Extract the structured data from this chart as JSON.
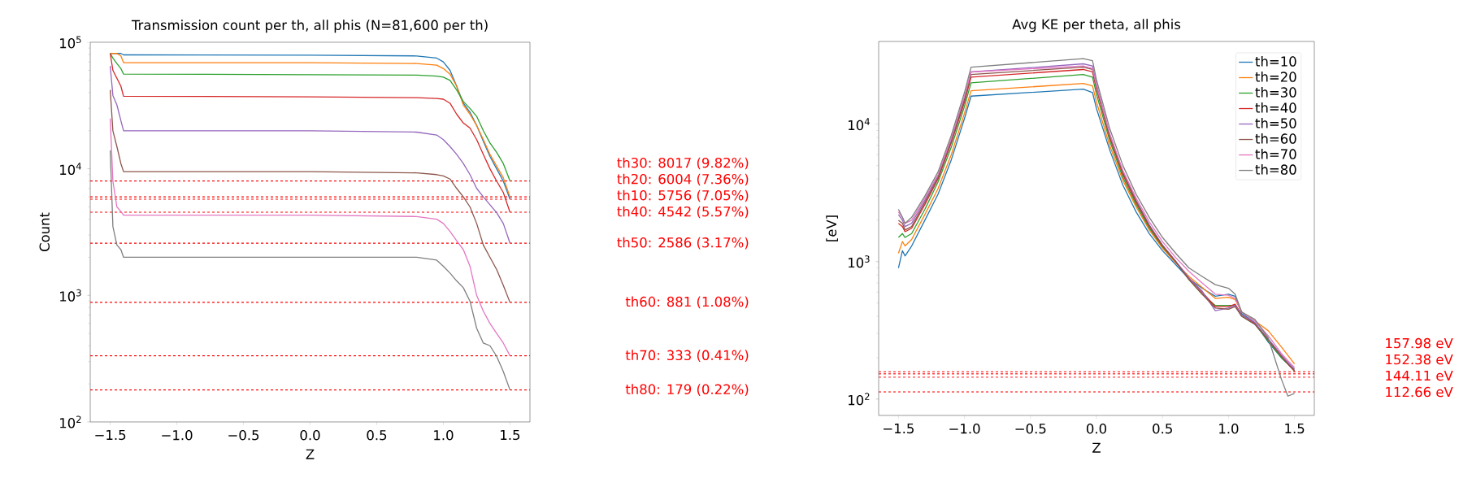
{
  "chart_data": [
    {
      "type": "line",
      "title": "Transmission count per th, all phis (N=81,600 per th)",
      "xlabel": "Z",
      "ylabel": "Count",
      "log": "y",
      "xlim": [
        -1.65,
        1.65
      ],
      "ylim": [
        100,
        100000
      ],
      "xticks": [
        {
          "value": -1.5,
          "label": "−1.5"
        },
        {
          "value": -1.0,
          "label": "−1.0"
        },
        {
          "value": -0.5,
          "label": "−0.5"
        },
        {
          "value": 0,
          "label": "0.0"
        },
        {
          "value": 0.5,
          "label": "0.5"
        },
        {
          "value": 1.0,
          "label": "1.0"
        },
        {
          "value": 1.5,
          "label": "1.5"
        }
      ],
      "yticks": [
        {
          "value": 100,
          "label": "10$^{2}$"
        },
        {
          "value": 1000,
          "label": "10$^{3}$"
        },
        {
          "value": 10000,
          "label": "10$^{4}$"
        },
        {
          "value": 100000,
          "label": "10$^{5}$"
        }
      ],
      "x": [
        -1.5,
        -1.48,
        -1.45,
        -1.42,
        -1.4,
        0.0,
        0.8,
        0.95,
        1.0,
        1.05,
        1.1,
        1.15,
        1.2,
        1.25,
        1.3,
        1.35,
        1.4,
        1.45,
        1.5
      ],
      "series": [
        {
          "color": "#1f77b4",
          "values": [
            81600,
            81600,
            81600,
            81600,
            79500,
            79000,
            78000,
            75000,
            70000,
            60000,
            45000,
            33000,
            28000,
            22000,
            16500,
            12500,
            10000,
            8000,
            5756
          ]
        },
        {
          "color": "#ff7f0e",
          "values": [
            81600,
            81600,
            81600,
            78000,
            69000,
            69000,
            68000,
            66000,
            62000,
            56000,
            45000,
            32000,
            27000,
            22000,
            17000,
            13000,
            10500,
            8500,
            6004
          ]
        },
        {
          "color": "#2ca02c",
          "values": [
            81600,
            75000,
            68000,
            62000,
            56000,
            55500,
            55000,
            54000,
            53000,
            50000,
            42000,
            34000,
            30000,
            26000,
            20000,
            16000,
            13500,
            11000,
            8017
          ]
        },
        {
          "color": "#d62728",
          "values": [
            81600,
            60000,
            52000,
            45000,
            37500,
            37000,
            36500,
            36000,
            35500,
            33000,
            27000,
            23000,
            21000,
            17000,
            13000,
            10000,
            8000,
            6500,
            4542
          ]
        },
        {
          "color": "#9467bd",
          "values": [
            65000,
            38000,
            32000,
            24000,
            20000,
            20000,
            19500,
            18500,
            17000,
            15000,
            13000,
            11000,
            9000,
            7000,
            6000,
            5200,
            4500,
            3700,
            2586
          ]
        },
        {
          "color": "#8c564b",
          "values": [
            42000,
            20000,
            15000,
            11000,
            9500,
            9500,
            9300,
            9000,
            8800,
            8300,
            7000,
            6000,
            5000,
            3700,
            2500,
            2000,
            1600,
            1200,
            881
          ]
        },
        {
          "color": "#e377c2",
          "values": [
            25000,
            8000,
            5000,
            4600,
            4300,
            4300,
            4200,
            4000,
            3700,
            3200,
            2700,
            2300,
            1700,
            1000,
            750,
            600,
            500,
            420,
            333
          ]
        },
        {
          "color": "#7f7f7f",
          "values": [
            14000,
            3500,
            2500,
            2300,
            2000,
            2000,
            2000,
            1900,
            1700,
            1500,
            1300,
            1150,
            900,
            550,
            420,
            400,
            330,
            250,
            179
          ]
        }
      ],
      "ref_lines": [
        {
          "axis": "y",
          "value": 8017,
          "label": "th30: 8017 (9.82%)",
          "color": "#ff0000",
          "line_style": "dashed"
        },
        {
          "axis": "y",
          "value": 6004,
          "label": "th20: 6004 (7.36%)",
          "color": "#ff0000",
          "line_style": "dashed"
        },
        {
          "axis": "y",
          "value": 5756,
          "label": "th10: 5756 (7.05%)",
          "color": "#ff0000",
          "line_style": "dashed"
        },
        {
          "axis": "y",
          "value": 4542,
          "label": "th40: 4542 (5.57%)",
          "color": "#ff0000",
          "line_style": "dashed"
        },
        {
          "axis": "y",
          "value": 2586,
          "label": "th50: 2586 (3.17%)",
          "color": "#ff0000",
          "line_style": "dashed"
        },
        {
          "axis": "y",
          "value": 881,
          "label": "th60: 881 (1.08%)",
          "color": "#ff0000",
          "line_style": "dashed"
        },
        {
          "axis": "y",
          "value": 333,
          "label": "th70: 333 (0.41%)",
          "color": "#ff0000",
          "line_style": "dashed"
        },
        {
          "axis": "y",
          "value": 179,
          "label": "th80: 179 (0.22%)",
          "color": "#ff0000",
          "line_style": "dashed"
        }
      ]
    },
    {
      "type": "line",
      "title": "Avg KE per theta, all phis",
      "xlabel": "Z",
      "ylabel": "[eV]",
      "log": "y",
      "legend": "top right",
      "xlim": [
        -1.65,
        1.65
      ],
      "ylim": [
        76,
        40000
      ],
      "xticks": [
        {
          "value": -1.5,
          "label": "−1.5"
        },
        {
          "value": -1.0,
          "label": "−1.0"
        },
        {
          "value": -0.5,
          "label": "−0.5"
        },
        {
          "value": 0,
          "label": "0.0"
        },
        {
          "value": 0.5,
          "label": "0.5"
        },
        {
          "value": 1.0,
          "label": "1.0"
        },
        {
          "value": 1.5,
          "label": "1.5"
        }
      ],
      "yticks": [
        {
          "value": 100,
          "label": "10$^{2}$"
        },
        {
          "value": 1000,
          "label": "10$^{3}$"
        },
        {
          "value": 10000,
          "label": "10$^{4}$"
        }
      ],
      "x": [
        -1.5,
        -1.47,
        -1.45,
        -1.4,
        -1.3,
        -1.2,
        -1.1,
        -1.0,
        -0.95,
        -0.1,
        -0.03,
        0.0,
        0.1,
        0.2,
        0.3,
        0.4,
        0.5,
        0.6,
        0.7,
        0.8,
        0.9,
        1.0,
        1.05,
        1.1,
        1.2,
        1.3,
        1.4,
        1.45,
        1.5
      ],
      "series": [
        {
          "name": "th=10",
          "color": "#1f77b4",
          "values": [
            900,
            1200,
            1100,
            1300,
            2000,
            3100,
            5500,
            11000,
            16000,
            18000,
            17000,
            13000,
            6500,
            3600,
            2300,
            1600,
            1200,
            950,
            750,
            640,
            560,
            580,
            560,
            420,
            360,
            260,
            200,
            180,
            160
          ]
        },
        {
          "name": "th=20",
          "color": "#ff7f0e",
          "values": [
            1150,
            1400,
            1300,
            1450,
            2200,
            3400,
            6000,
            12000,
            17500,
            19800,
            19000,
            14500,
            7000,
            3900,
            2500,
            1700,
            1250,
            980,
            780,
            650,
            540,
            550,
            530,
            430,
            370,
            315,
            240,
            208,
            180
          ]
        },
        {
          "name": "th=30",
          "color": "#2ca02c",
          "values": [
            1500,
            1600,
            1500,
            1600,
            2400,
            3800,
            6800,
            13500,
            20000,
            23000,
            22000,
            16500,
            7600,
            4100,
            2600,
            1750,
            1280,
            1000,
            740,
            580,
            480,
            480,
            480,
            400,
            350,
            265,
            200,
            180,
            160
          ]
        },
        {
          "name": "th=40",
          "color": "#d62728",
          "values": [
            1900,
            1800,
            1650,
            1750,
            2600,
            4000,
            7300,
            14500,
            22000,
            25000,
            24000,
            18000,
            8000,
            4300,
            2700,
            1800,
            1300,
            1000,
            760,
            600,
            470,
            470,
            490,
            410,
            355,
            270,
            205,
            180,
            160
          ]
        },
        {
          "name": "th=50",
          "color": "#9467bd",
          "values": [
            2200,
            2000,
            1800,
            1900,
            2800,
            4200,
            7700,
            15500,
            24000,
            27500,
            26500,
            19500,
            8500,
            4500,
            2800,
            1850,
            1320,
            1010,
            760,
            610,
            440,
            460,
            480,
            410,
            360,
            275,
            210,
            185,
            165
          ]
        },
        {
          "name": "th=60",
          "color": "#8c564b",
          "values": [
            2000,
            1900,
            1700,
            1800,
            2700,
            4100,
            7500,
            15000,
            23000,
            26000,
            25000,
            18500,
            8200,
            4400,
            2750,
            1820,
            1310,
            1000,
            740,
            580,
            460,
            450,
            470,
            400,
            350,
            270,
            205,
            180,
            162
          ]
        },
        {
          "name": "th=70",
          "color": "#e377c2",
          "values": [
            2300,
            2100,
            1900,
            2000,
            2900,
            4300,
            7900,
            16000,
            24000,
            26500,
            25500,
            19000,
            8500,
            4600,
            2900,
            1950,
            1400,
            1070,
            850,
            700,
            580,
            570,
            540,
            430,
            370,
            290,
            215,
            190,
            170
          ]
        },
        {
          "name": "th=80",
          "color": "#7f7f7f",
          "values": [
            2400,
            2100,
            1900,
            2100,
            3000,
            4500,
            8300,
            17000,
            26000,
            30000,
            29000,
            21000,
            9300,
            5000,
            3100,
            2100,
            1500,
            1150,
            900,
            780,
            680,
            640,
            580,
            430,
            380,
            280,
            140,
            105,
            110
          ]
        }
      ],
      "ref_lines": [
        {
          "axis": "y",
          "value": 157.98,
          "label": "157.98 eV",
          "color": "#ff0000",
          "line_style": "dashed"
        },
        {
          "axis": "y",
          "value": 152.38,
          "label": "152.38 eV",
          "color": "#ff0000",
          "line_style": "dashed"
        },
        {
          "axis": "y",
          "value": 144.11,
          "label": "144.11 eV",
          "color": "#ff0000",
          "line_style": "dashed"
        },
        {
          "axis": "y",
          "value": 112.66,
          "label": "112.66 eV",
          "color": "#ff0000",
          "line_style": "dashed"
        }
      ]
    }
  ]
}
